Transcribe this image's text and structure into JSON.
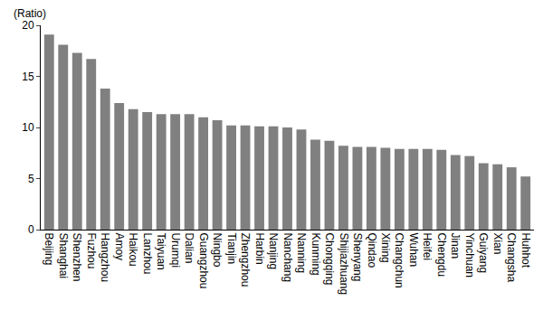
{
  "chart_data": {
    "type": "bar",
    "y_label": "(Ratio)",
    "categories": [
      "Beijing",
      "Shanghai",
      "Shenzhen",
      "Fuzhou",
      "Hangzhou",
      "Amoy",
      "Haikou",
      "Lanzhou",
      "Taiyuan",
      "Urumqi",
      "Dalian",
      "Guangzhou",
      "Ningbo",
      "Tianjin",
      "Zhengzhou",
      "Harbin",
      "Nanjing",
      "Nanchang",
      "Nanning",
      "Kunming",
      "Chongqing",
      "Shijiazhuang",
      "Shenyang",
      "Qindao",
      "Xining",
      "Changchun",
      "Wuhan",
      "Heifei",
      "Chengdu",
      "Jinan",
      "Yinchuan",
      "Guiyang",
      "Xian",
      "Changsha",
      "Huhhot"
    ],
    "values": [
      19.1,
      18.1,
      17.3,
      16.7,
      13.8,
      12.4,
      11.8,
      11.5,
      11.3,
      11.3,
      11.3,
      11.0,
      10.7,
      10.2,
      10.2,
      10.1,
      10.1,
      10.0,
      9.8,
      8.8,
      8.7,
      8.2,
      8.1,
      8.1,
      8.0,
      7.9,
      7.9,
      7.9,
      7.8,
      7.3,
      7.2,
      6.5,
      6.4,
      6.1,
      5.2
    ],
    "color": "#808080",
    "ylim": [
      0,
      20
    ],
    "yticks": [
      0,
      5,
      10,
      15,
      20
    ],
    "grid": false
  }
}
